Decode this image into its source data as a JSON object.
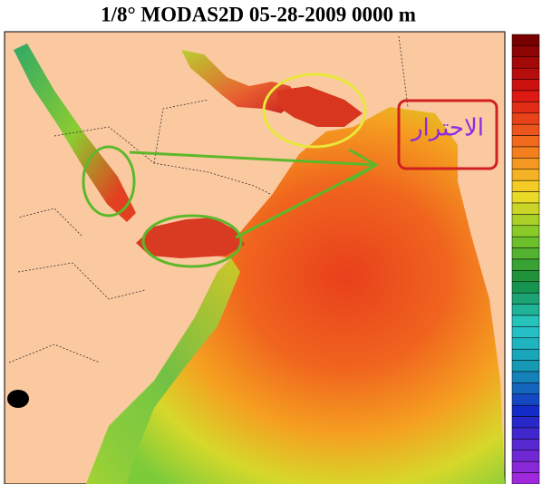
{
  "title": "1/8° MODAS2D 05-28-2009 0000 m",
  "annotation": "الاحترار"
}
